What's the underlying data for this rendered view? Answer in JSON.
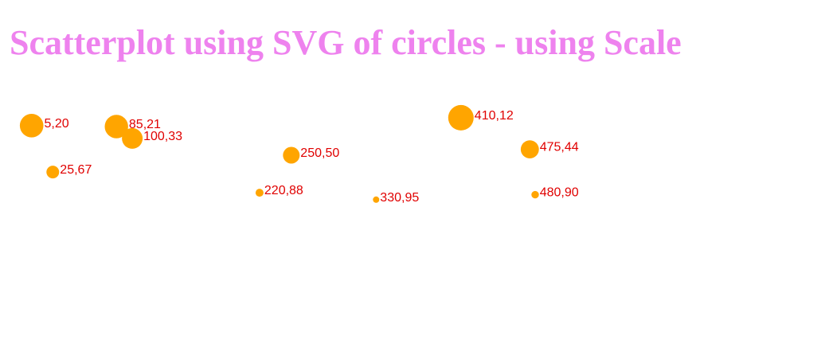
{
  "page": {
    "title": "Scatterplot using SVG of circles - using Scale"
  },
  "colors": {
    "title": "#ee82ee",
    "point_fill": "#ffa500",
    "label": "#e00000",
    "background": "#ffffff"
  },
  "chart_data": {
    "type": "scatter",
    "points": [
      {
        "x": 5,
        "y": 20,
        "label": "5,20"
      },
      {
        "x": 480,
        "y": 90,
        "label": "480,90"
      },
      {
        "x": 250,
        "y": 50,
        "label": "250,50"
      },
      {
        "x": 100,
        "y": 33,
        "label": "100,33"
      },
      {
        "x": 330,
        "y": 95,
        "label": "330,95"
      },
      {
        "x": 410,
        "y": 12,
        "label": "410,12"
      },
      {
        "x": 475,
        "y": 44,
        "label": "475,44"
      },
      {
        "x": 25,
        "y": 67,
        "label": "25,67"
      },
      {
        "x": 85,
        "y": 21,
        "label": "85,21"
      },
      {
        "x": 220,
        "y": 88,
        "label": "220,88"
      }
    ],
    "xlim": [
      0,
      480
    ],
    "ylim": [
      0,
      100
    ],
    "grid": false,
    "legend": "none",
    "size_encoding": "radius decreases as y increases"
  }
}
